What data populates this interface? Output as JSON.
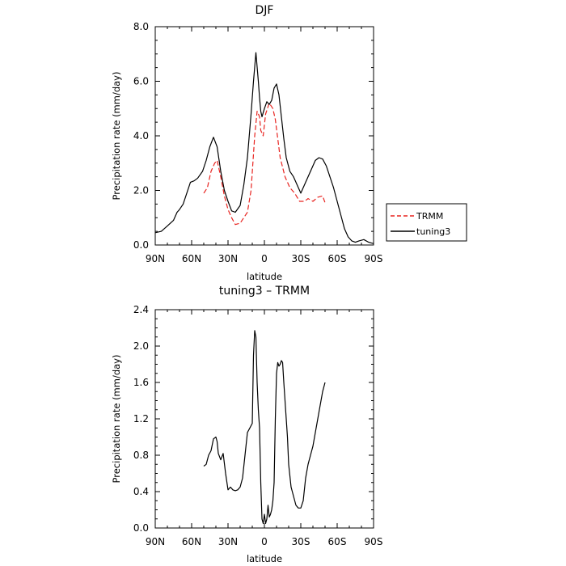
{
  "chart_data": [
    {
      "type": "line",
      "title": "DJF",
      "xlabel": "latitude",
      "ylabel": "Precipitation rate (mm/day)",
      "xlim": [
        90,
        -90
      ],
      "ylim": [
        0,
        8
      ],
      "x_ticks": [
        90,
        60,
        30,
        0,
        -30,
        -60,
        -90
      ],
      "x_tick_labels": [
        "90N",
        "60N",
        "30N",
        "0",
        "30S",
        "60S",
        "90S"
      ],
      "y_ticks": [
        0,
        2,
        4,
        6,
        8
      ],
      "y_tick_labels": [
        "0.0",
        "2.0",
        "4.0",
        "6.0",
        "8.0"
      ],
      "grid": false,
      "legend": "outside right",
      "colors": {
        "TRMM": "#e8231f",
        "tuning3": "#000000"
      },
      "series": [
        {
          "name": "TRMM",
          "x": [
            50,
            47,
            44,
            41,
            39,
            36,
            33,
            30,
            27,
            24,
            20,
            17,
            14,
            11,
            8,
            6,
            4,
            3,
            1,
            -1,
            -4,
            -7,
            -9,
            -13,
            -17,
            -21,
            -25,
            -29,
            -33,
            -36,
            -40,
            -44,
            -48,
            -50
          ],
          "y": [
            1.9,
            2.1,
            2.7,
            3.0,
            3.1,
            2.5,
            1.8,
            1.3,
            1.0,
            0.75,
            0.8,
            1.0,
            1.2,
            2.0,
            4.0,
            4.9,
            4.7,
            4.2,
            4.0,
            4.8,
            5.2,
            5.0,
            4.6,
            3.2,
            2.5,
            2.1,
            1.9,
            1.6,
            1.6,
            1.7,
            1.6,
            1.75,
            1.8,
            1.55
          ]
        },
        {
          "name": "tuning3",
          "x": [
            90,
            85,
            80,
            75,
            72,
            70,
            67,
            64,
            61,
            58,
            55,
            51,
            48,
            45,
            42,
            39,
            36,
            33,
            30,
            27,
            24,
            20,
            17,
            14,
            11,
            9,
            7,
            5,
            4,
            3,
            2,
            0,
            -2,
            -4,
            -6,
            -8,
            -10,
            -12,
            -14,
            -16,
            -18,
            -21,
            -24,
            -27,
            -30,
            -33,
            -36,
            -39,
            -42,
            -45,
            -48,
            -51,
            -54,
            -57,
            -60,
            -63,
            -66,
            -69,
            -72,
            -75,
            -78,
            -82,
            -86,
            -90
          ],
          "y": [
            0.45,
            0.5,
            0.7,
            0.9,
            1.2,
            1.3,
            1.5,
            1.9,
            2.3,
            2.35,
            2.45,
            2.7,
            3.1,
            3.6,
            3.95,
            3.6,
            2.7,
            2.0,
            1.6,
            1.25,
            1.2,
            1.45,
            2.2,
            3.2,
            4.8,
            6.0,
            7.05,
            6.0,
            5.4,
            4.9,
            4.7,
            5.0,
            5.25,
            5.15,
            5.3,
            5.75,
            5.9,
            5.5,
            4.7,
            3.9,
            3.2,
            2.7,
            2.5,
            2.2,
            1.9,
            2.2,
            2.5,
            2.8,
            3.1,
            3.2,
            3.15,
            2.9,
            2.5,
            2.1,
            1.6,
            1.1,
            0.6,
            0.3,
            0.15,
            0.1,
            0.15,
            0.2,
            0.1,
            0.05
          ]
        }
      ]
    },
    {
      "type": "line",
      "title": "tuning3 – TRMM",
      "xlabel": "latitude",
      "ylabel": "Precipitation rate (mm/day)",
      "xlim": [
        90,
        -90
      ],
      "ylim": [
        0,
        2.4
      ],
      "x_ticks": [
        90,
        60,
        30,
        0,
        -30,
        -60,
        -90
      ],
      "x_tick_labels": [
        "90N",
        "60N",
        "30N",
        "0",
        "30S",
        "60S",
        "90S"
      ],
      "y_ticks": [
        0,
        0.4,
        0.8,
        1.2,
        1.6,
        2.0,
        2.4
      ],
      "y_tick_labels": [
        "0.0",
        "0.4",
        "0.8",
        "1.2",
        "1.6",
        "2.0",
        "2.4"
      ],
      "grid": false,
      "colors": {
        "difference": "#000000"
      },
      "series": [
        {
          "x": [
            50,
            48,
            46,
            44,
            42,
            40,
            39,
            38,
            36,
            34,
            32,
            30,
            28,
            26,
            24,
            22,
            20,
            18,
            16,
            14,
            12,
            10,
            9,
            8,
            7,
            6,
            5,
            4,
            3,
            2,
            1,
            0,
            -1,
            -2,
            -3,
            -4,
            -5,
            -6,
            -7,
            -8,
            -9,
            -10,
            -11,
            -12,
            -13,
            -14,
            -15,
            -16,
            -17,
            -18,
            -19,
            -20,
            -22,
            -24,
            -26,
            -28,
            -30,
            -32,
            -34,
            -36,
            -38,
            -40,
            -42,
            -44,
            -46,
            -48,
            -50
          ],
          "y": [
            0.68,
            0.7,
            0.8,
            0.85,
            0.98,
            1.0,
            0.95,
            0.82,
            0.75,
            0.82,
            0.6,
            0.42,
            0.45,
            0.42,
            0.41,
            0.42,
            0.45,
            0.55,
            0.8,
            1.05,
            1.1,
            1.15,
            1.9,
            2.17,
            2.1,
            1.6,
            1.3,
            1.1,
            0.5,
            0.1,
            0.05,
            0.15,
            0.05,
            0.1,
            0.25,
            0.12,
            0.15,
            0.2,
            0.3,
            0.5,
            1.2,
            1.7,
            1.82,
            1.78,
            1.8,
            1.84,
            1.82,
            1.6,
            1.4,
            1.2,
            1.0,
            0.7,
            0.45,
            0.35,
            0.25,
            0.22,
            0.22,
            0.3,
            0.55,
            0.7,
            0.8,
            0.9,
            1.05,
            1.2,
            1.35,
            1.5,
            1.6
          ]
        }
      ]
    }
  ]
}
